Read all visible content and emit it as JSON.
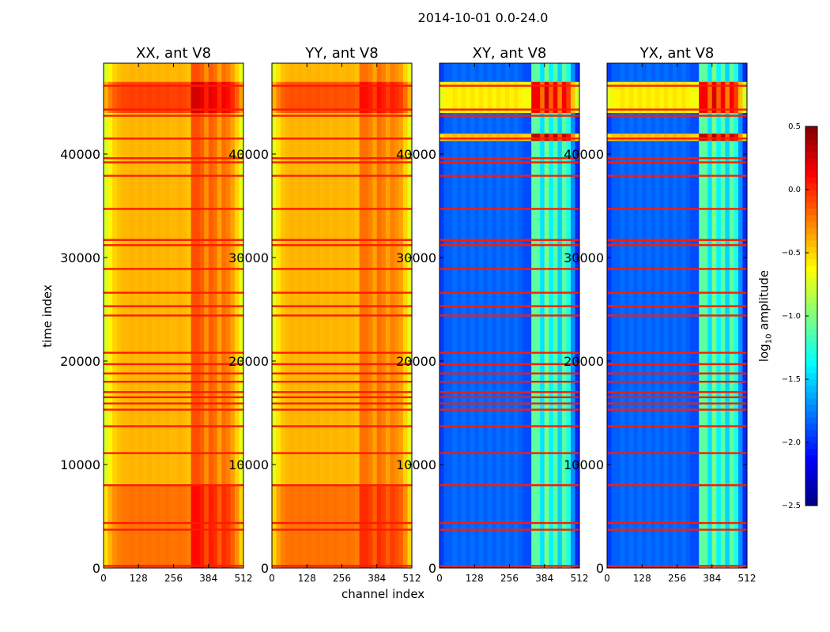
{
  "chart_data": {
    "type": "heatmap",
    "title": "2014-10-01 0.0-24.0",
    "xlabel": "channel index",
    "ylabel": "time index",
    "xlim": [
      0,
      512
    ],
    "ylim": [
      0,
      48780
    ],
    "xticks": [
      "0",
      "128",
      "256",
      "384",
      "512"
    ],
    "yticks": [
      "0",
      "10000",
      "20000",
      "30000",
      "40000"
    ],
    "colorbar": {
      "label_prefix": "log",
      "label_sub": "10",
      "label_suffix": " amplitude",
      "colormap": "jet",
      "range": [
        -2.5,
        0.5
      ],
      "ticks": [
        "0.5",
        "0.0",
        "−0.5",
        "−1.0",
        "−1.5",
        "−2.0",
        "−2.5"
      ]
    },
    "flagged_rows": [
      200,
      3700,
      4350,
      8000,
      11100,
      13700,
      15300,
      15900,
      16500,
      17000,
      18000,
      18800,
      19700,
      20800,
      24400,
      25300,
      26600,
      28900,
      31200,
      31700,
      34700,
      37900,
      39200,
      39600,
      41500,
      43700,
      44300,
      46600
    ],
    "flag_value": 0.05,
    "panels": [
      {
        "title": "XX, ant V8",
        "channel_profile": [
          -0.75,
          -0.6,
          -0.5,
          -0.45,
          -0.42,
          -0.42,
          -0.4,
          -0.42,
          -0.4,
          -0.42,
          -0.4,
          -0.42,
          -0.4,
          -0.42,
          -0.4,
          -0.42,
          -0.42,
          -0.4,
          -0.42,
          -0.45,
          -0.1,
          -0.1,
          -0.15,
          -0.3,
          -0.15,
          -0.2,
          -0.35,
          -0.2,
          -0.25,
          -0.35,
          -0.5,
          -0.7
        ],
        "regions": [
          {
            "t0": 0,
            "t1": 8000,
            "offset": 0.2
          },
          {
            "t0": 44000,
            "t1": 47000,
            "offset": 0.35
          }
        ]
      },
      {
        "title": "YY, ant V8",
        "channel_profile": [
          -0.7,
          -0.55,
          -0.45,
          -0.42,
          -0.4,
          -0.42,
          -0.4,
          -0.42,
          -0.4,
          -0.42,
          -0.4,
          -0.42,
          -0.4,
          -0.42,
          -0.4,
          -0.42,
          -0.42,
          -0.4,
          -0.42,
          -0.45,
          -0.2,
          -0.2,
          -0.25,
          -0.35,
          -0.2,
          -0.25,
          -0.35,
          -0.25,
          -0.3,
          -0.35,
          -0.5,
          -0.7
        ],
        "regions": [
          {
            "t0": 0,
            "t1": 8000,
            "offset": 0.2
          },
          {
            "t0": 44000,
            "t1": 47000,
            "offset": 0.3
          }
        ]
      },
      {
        "title": "XY, ant V8",
        "channel_profile": [
          -1.95,
          -1.85,
          -1.85,
          -1.8,
          -1.85,
          -1.8,
          -1.85,
          -1.8,
          -1.85,
          -1.8,
          -1.85,
          -1.8,
          -1.85,
          -1.8,
          -1.85,
          -1.8,
          -1.85,
          -1.8,
          -1.85,
          -1.9,
          -1.9,
          -1.1,
          -1.1,
          -1.45,
          -1.0,
          -1.4,
          -1.1,
          -1.5,
          -1.1,
          -1.3,
          -1.7,
          -2.0
        ],
        "regions": [
          {
            "t0": 41300,
            "t1": 42000,
            "offset": 1.4
          },
          {
            "t0": 44000,
            "t1": 47000,
            "offset": 1.25
          }
        ]
      },
      {
        "title": "YX, ant V8",
        "channel_profile": [
          -1.95,
          -1.85,
          -1.85,
          -1.8,
          -1.85,
          -1.8,
          -1.85,
          -1.8,
          -1.85,
          -1.8,
          -1.85,
          -1.8,
          -1.85,
          -1.8,
          -1.85,
          -1.8,
          -1.85,
          -1.8,
          -1.85,
          -1.9,
          -1.9,
          -1.1,
          -1.1,
          -1.45,
          -1.0,
          -1.4,
          -1.1,
          -1.5,
          -1.1,
          -1.3,
          -1.7,
          -2.0
        ],
        "regions": [
          {
            "t0": 41300,
            "t1": 42000,
            "offset": 1.4
          },
          {
            "t0": 44000,
            "t1": 47000,
            "offset": 1.25
          }
        ]
      }
    ]
  }
}
